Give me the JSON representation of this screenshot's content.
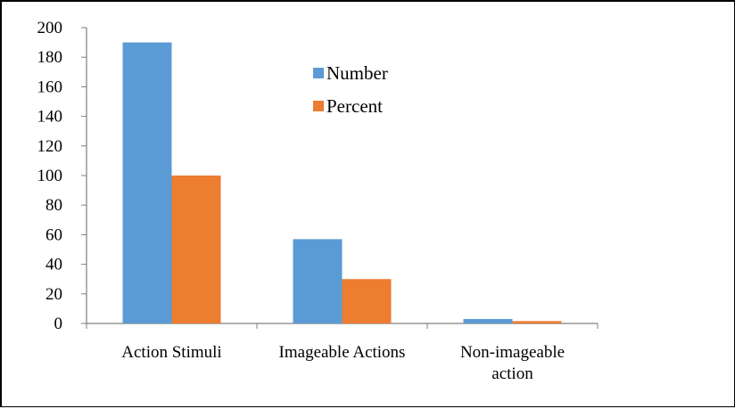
{
  "chart_data": {
    "type": "bar",
    "title": "",
    "xlabel": "",
    "ylabel": "",
    "categories": [
      [
        "Action Stimuli"
      ],
      [
        "Imageable Actions"
      ],
      [
        "Non-imageable",
        "action"
      ]
    ],
    "series": [
      {
        "name": "Number",
        "color": "#5b9bd5",
        "values": [
          190,
          57,
          3
        ]
      },
      {
        "name": "Percent",
        "color": "#ed7d31",
        "values": [
          100,
          30,
          1.6
        ]
      }
    ],
    "ylim": [
      0,
      200
    ],
    "yticks": [
      0,
      20,
      40,
      60,
      80,
      100,
      120,
      140,
      160,
      180,
      200
    ],
    "grid": false,
    "legend": "top-center"
  }
}
